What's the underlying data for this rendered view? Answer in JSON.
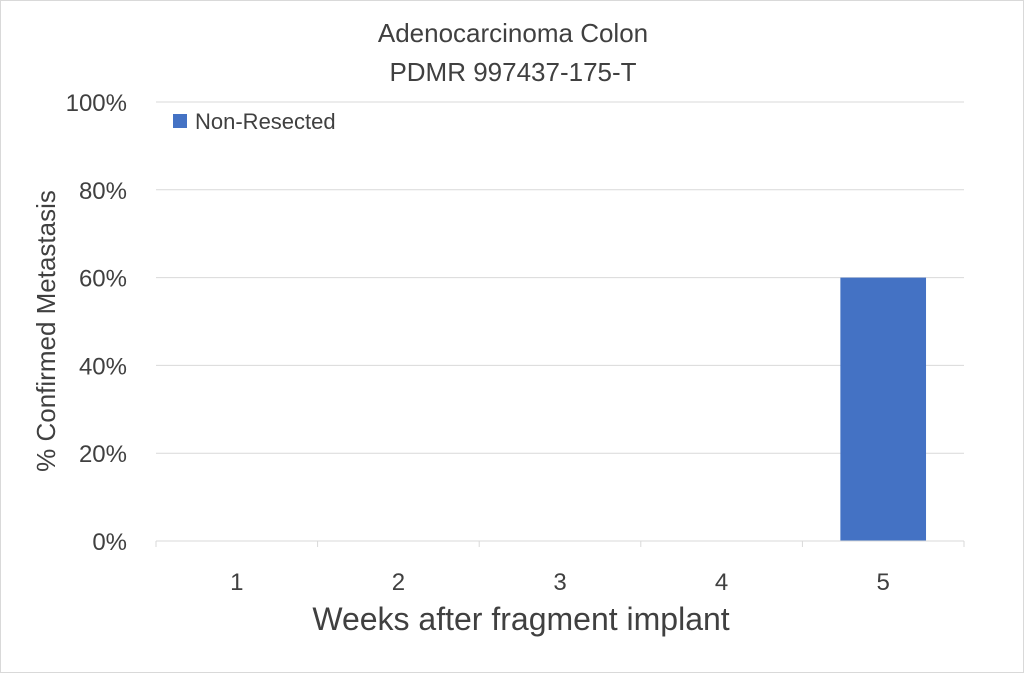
{
  "chart_data": {
    "type": "bar",
    "title": "Adenocarcinoma Colon",
    "subtitle": "PDMR 997437-175-T",
    "xlabel": "Weeks after fragment implant",
    "ylabel": "% Confirmed Metastasis",
    "categories": [
      "1",
      "2",
      "3",
      "4",
      "5"
    ],
    "series": [
      {
        "name": "Non-Resected",
        "color": "#4472C4",
        "values": [
          0,
          0,
          0,
          0,
          60
        ]
      }
    ],
    "ylim": [
      0,
      100
    ],
    "yticks": [
      0,
      20,
      40,
      60,
      80,
      100
    ],
    "ytick_labels": [
      "0%",
      "20%",
      "40%",
      "60%",
      "80%",
      "100%"
    ],
    "grid": true,
    "legend_position": "top-left",
    "colors": {
      "grid": "#d9d9d9",
      "text": "#404040",
      "bar": "#4472C4"
    }
  }
}
